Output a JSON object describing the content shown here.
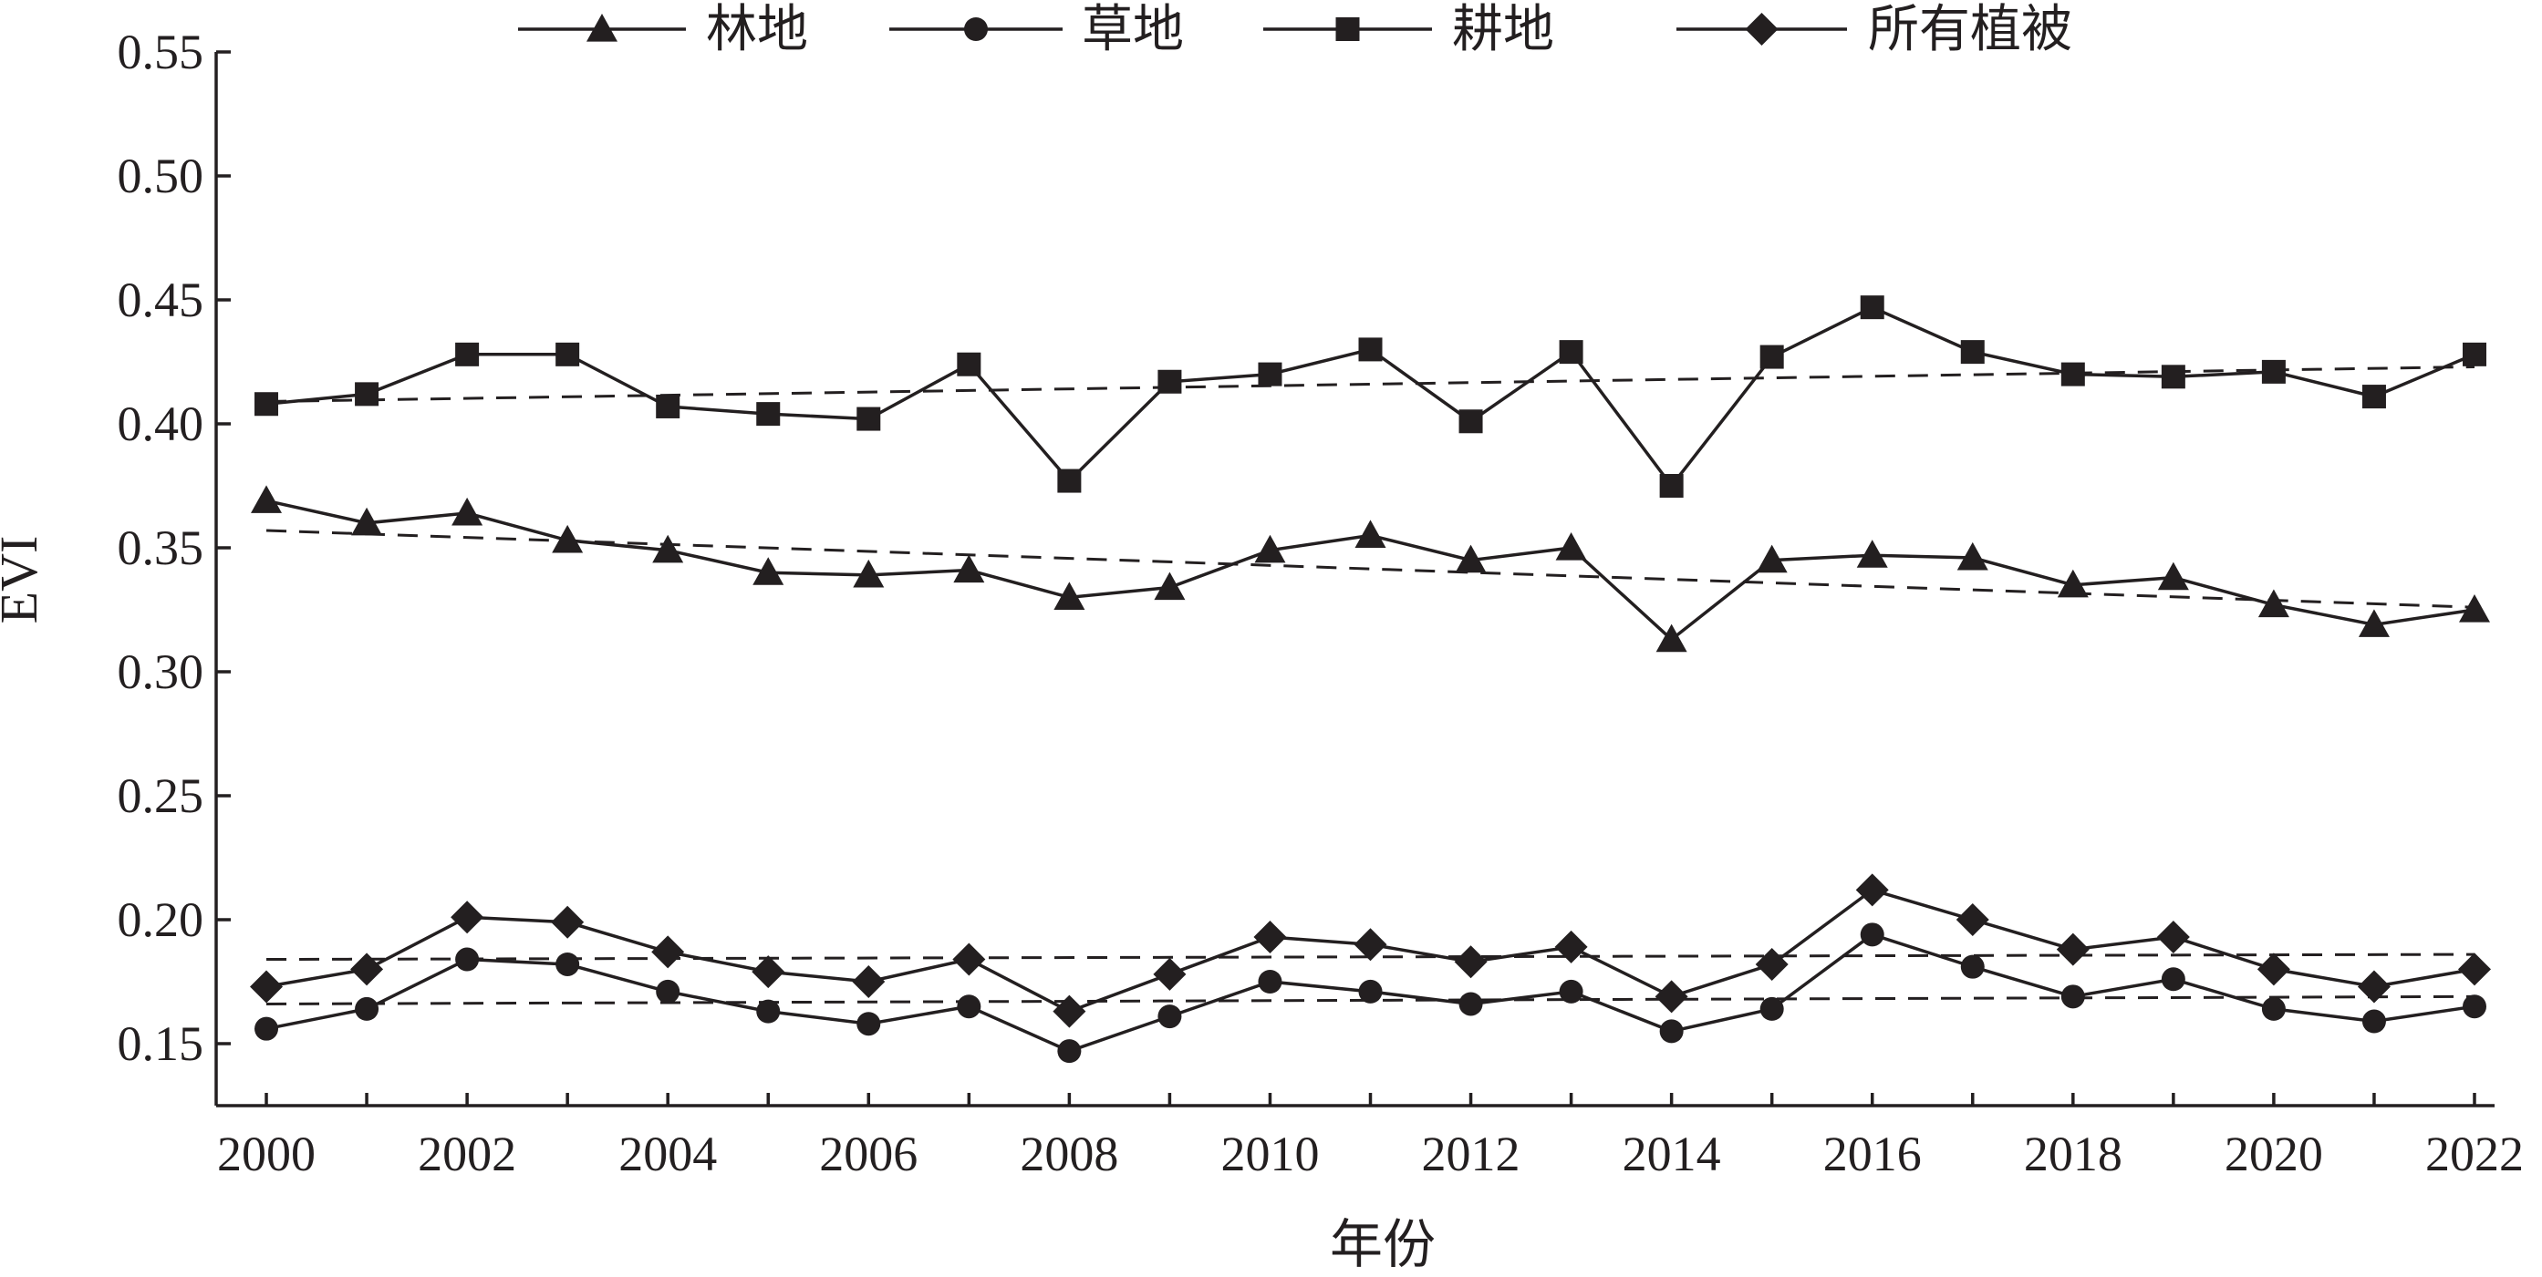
{
  "chart_data": {
    "type": "line",
    "xlabel": "年份",
    "ylabel": "EVI",
    "x": [
      2000,
      2001,
      2002,
      2003,
      2004,
      2005,
      2006,
      2007,
      2008,
      2009,
      2010,
      2011,
      2012,
      2013,
      2014,
      2015,
      2016,
      2017,
      2018,
      2019,
      2020,
      2021,
      2022
    ],
    "x_ticks": [
      "2000",
      "2002",
      "2004",
      "2006",
      "2008",
      "2010",
      "2012",
      "2014",
      "2016",
      "2018",
      "2020",
      "2022"
    ],
    "xlim": [
      1999.5,
      2022.2
    ],
    "ylim": [
      0.125,
      0.55
    ],
    "y_ticks": [
      "0.15",
      "0.20",
      "0.25",
      "0.30",
      "0.35",
      "0.40",
      "0.45",
      "0.50",
      "0.55"
    ],
    "legend_position": "top",
    "grid": false,
    "series": [
      {
        "name": "林地",
        "marker": "triangle",
        "values": [
          0.369,
          0.36,
          0.364,
          0.353,
          0.349,
          0.34,
          0.339,
          0.341,
          0.33,
          0.334,
          0.349,
          0.355,
          0.345,
          0.35,
          0.313,
          0.345,
          0.347,
          0.346,
          0.335,
          0.338,
          0.327,
          0.319,
          0.325
        ],
        "trend": [
          0.357,
          0.326
        ]
      },
      {
        "name": "草地",
        "marker": "circle",
        "values": [
          0.156,
          0.164,
          0.184,
          0.182,
          0.171,
          0.163,
          0.158,
          0.165,
          0.147,
          0.161,
          0.175,
          0.171,
          0.166,
          0.171,
          0.155,
          0.164,
          0.194,
          0.181,
          0.169,
          0.176,
          0.164,
          0.159,
          0.165
        ],
        "trend": [
          0.166,
          0.169
        ]
      },
      {
        "name": "耕地",
        "marker": "square",
        "values": [
          0.408,
          0.412,
          0.428,
          0.428,
          0.407,
          0.404,
          0.402,
          0.424,
          0.377,
          0.417,
          0.42,
          0.43,
          0.401,
          0.429,
          0.375,
          0.427,
          0.447,
          0.429,
          0.42,
          0.419,
          0.421,
          0.411,
          0.428
        ],
        "trend": [
          0.409,
          0.423
        ]
      },
      {
        "name": "所有植被",
        "marker": "diamond",
        "values": [
          0.173,
          0.18,
          0.201,
          0.199,
          0.187,
          0.179,
          0.175,
          0.184,
          0.163,
          0.178,
          0.193,
          0.19,
          0.183,
          0.189,
          0.169,
          0.182,
          0.212,
          0.2,
          0.188,
          0.193,
          0.18,
          0.173,
          0.18
        ],
        "trend": [
          0.184,
          0.186
        ]
      }
    ]
  }
}
